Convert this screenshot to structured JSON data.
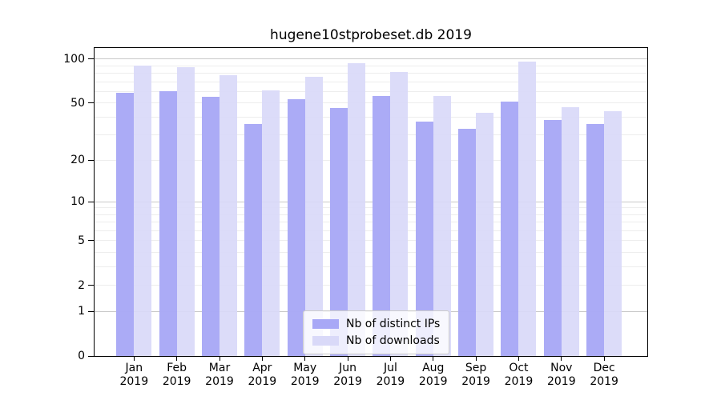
{
  "figure": {
    "background": "#ffffff"
  },
  "chart_data": {
    "type": "bar",
    "title": "hugene10stprobeset.db 2019",
    "categories": [
      "Jan",
      "Feb",
      "Mar",
      "Apr",
      "May",
      "Jun",
      "Jul",
      "Aug",
      "Sep",
      "Oct",
      "Nov",
      "Dec"
    ],
    "x_tick_second_line": "2019",
    "series": [
      {
        "name": "Nb of distinct IPs",
        "color": "#a8a8f6",
        "values": [
          59,
          60,
          55,
          36,
          53,
          46,
          56,
          37,
          33,
          51,
          38,
          36
        ]
      },
      {
        "name": "Nb of downloads",
        "color": "#d9d9f8",
        "values": [
          90,
          88,
          78,
          61,
          76,
          94,
          82,
          56,
          43,
          96,
          47,
          44
        ]
      }
    ],
    "xlabel": "",
    "ylabel": "",
    "yscale": "log1p",
    "ylim": [
      0,
      119
    ],
    "yticks": [
      0,
      1,
      2,
      5,
      10,
      20,
      50,
      100
    ],
    "major_gridlines": [
      1,
      10,
      100
    ],
    "minor_gridlines": [
      2,
      3,
      4,
      5,
      6,
      7,
      8,
      9,
      20,
      30,
      40,
      50,
      60,
      70,
      80,
      90
    ],
    "grid": true,
    "legend_position": "inside-bottom-center",
    "colors": {
      "axis": "#000000",
      "text": "#000000",
      "major_grid": "#c9c9c9",
      "minor_grid": "#ededed"
    }
  }
}
